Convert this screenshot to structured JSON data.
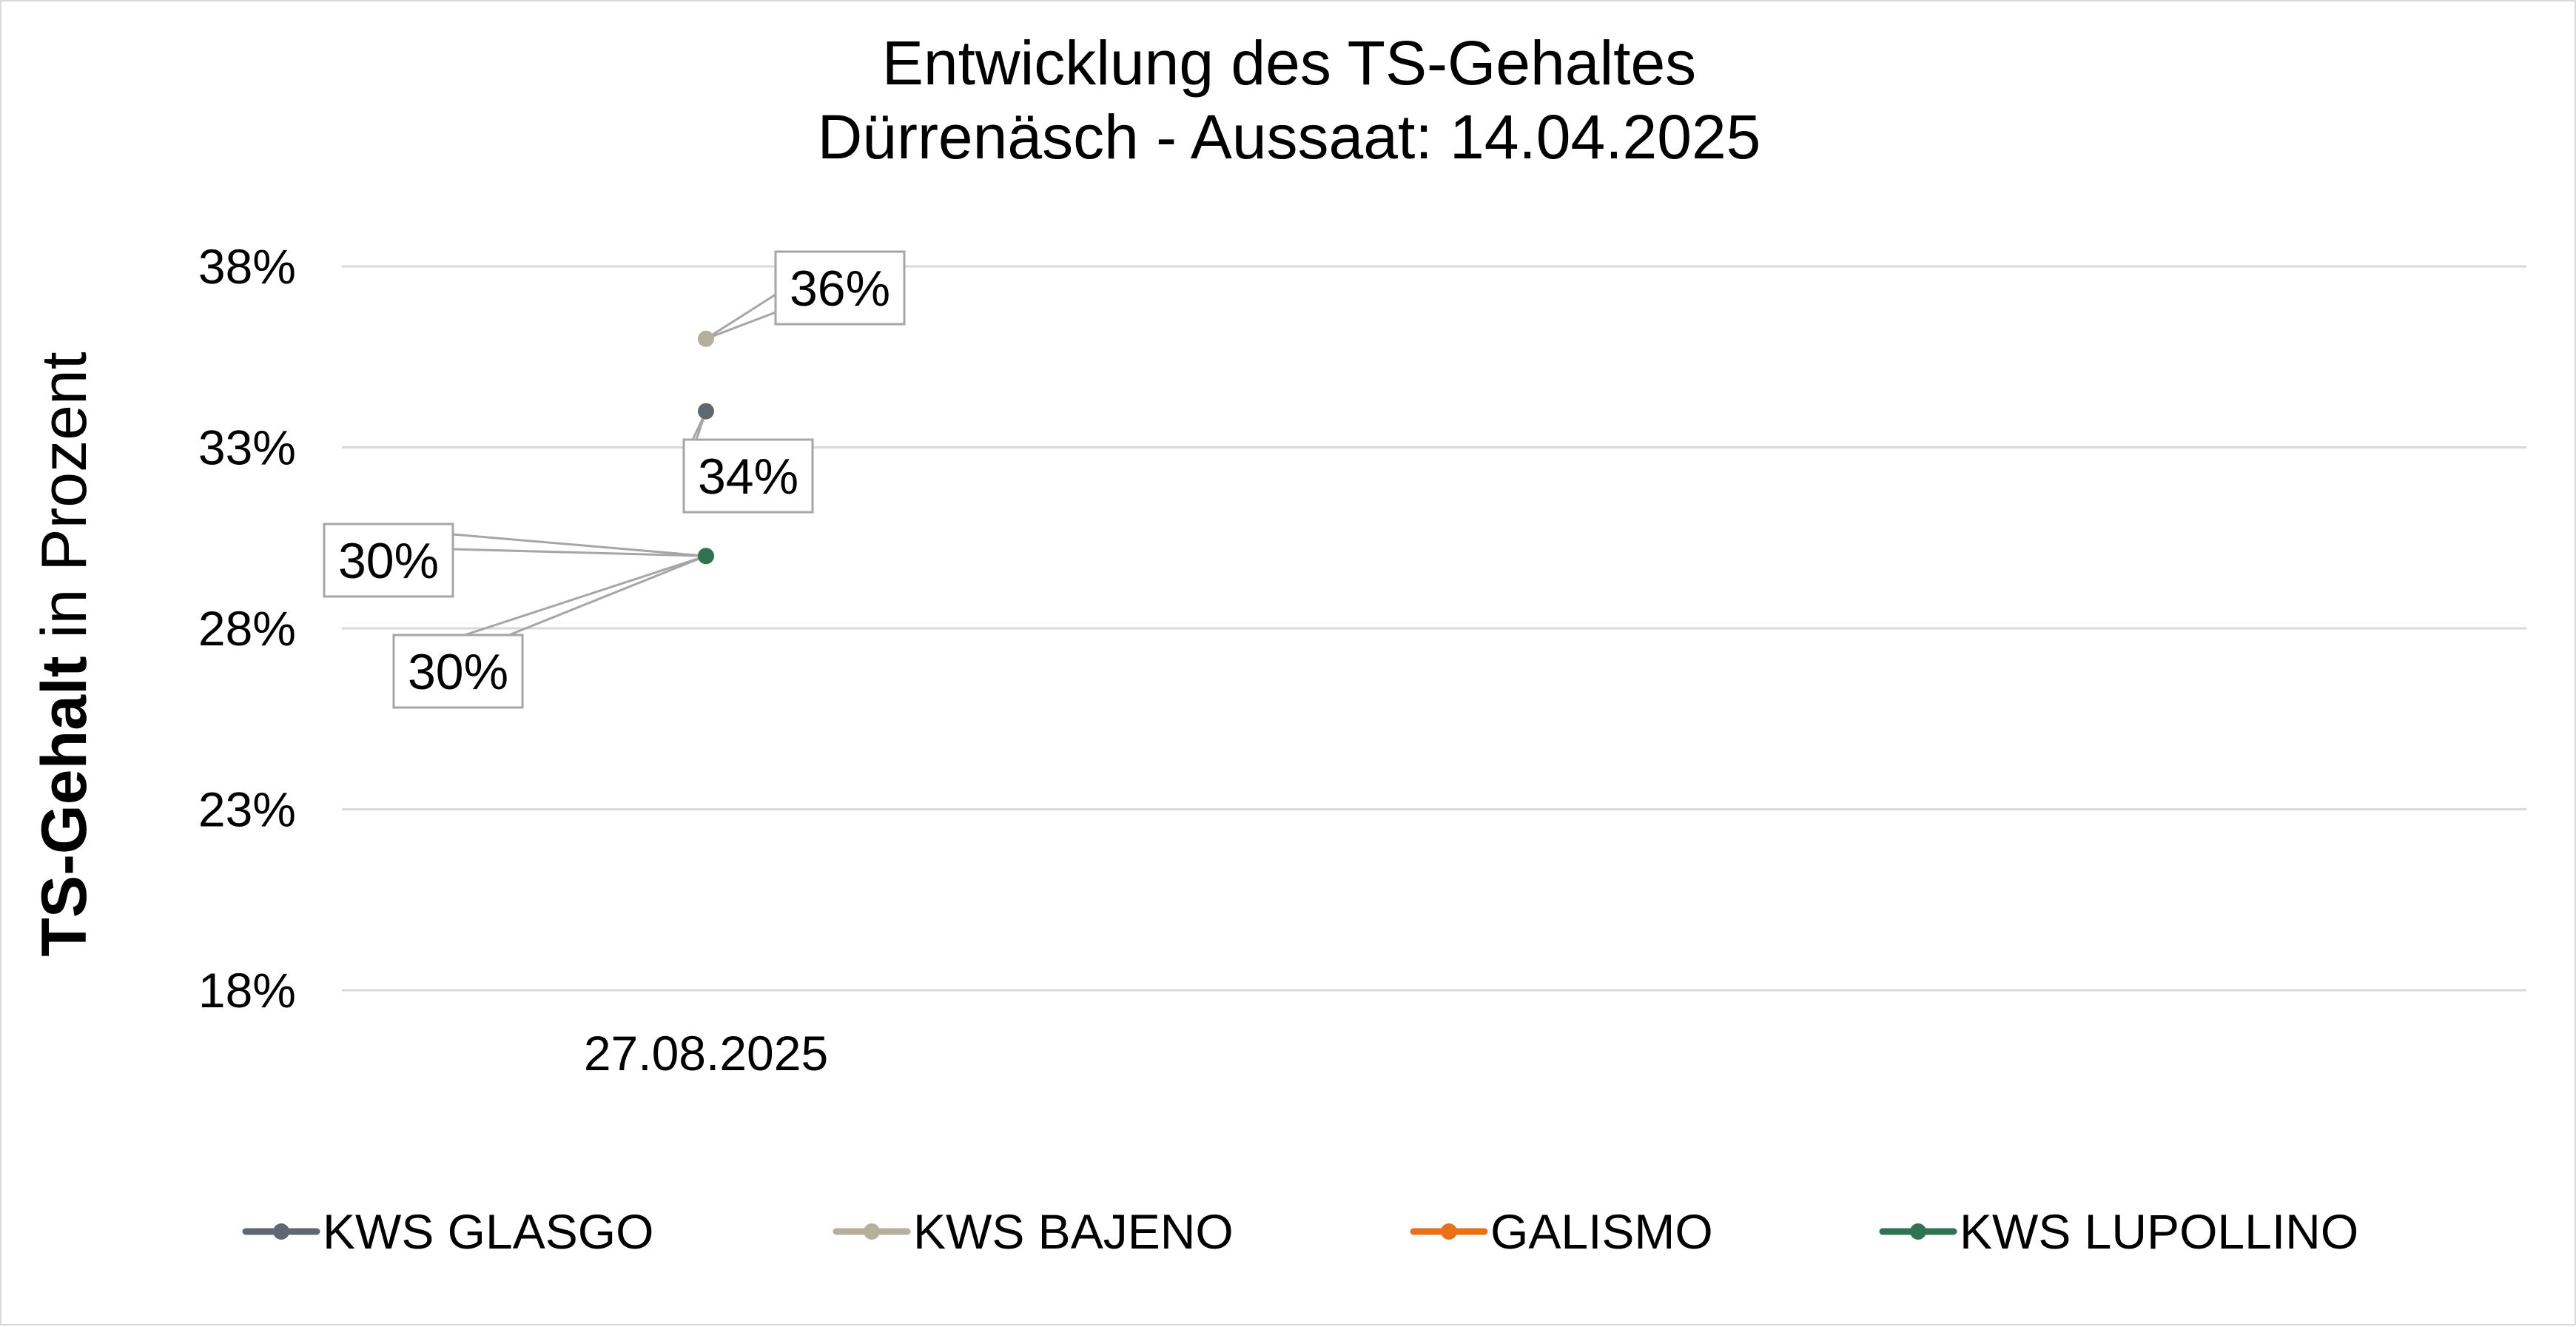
{
  "chart_data": {
    "type": "line",
    "title": "Entwicklung des TS-Gehaltes",
    "subtitle": "Dürrenäsch - Aussaat: 14.04.2025",
    "ylabel_bold": "TS-Gehalt",
    "ylabel_rest": " in Prozent",
    "xlabel": "",
    "categories": [
      "27.08.2025"
    ],
    "ylim": [
      0.18,
      0.38
    ],
    "yticks": [
      {
        "value": 0.38,
        "label": "38%"
      },
      {
        "value": 0.33,
        "label": "33%"
      },
      {
        "value": 0.28,
        "label": "28%"
      },
      {
        "value": 0.23,
        "label": "23%"
      },
      {
        "value": 0.18,
        "label": "18%"
      }
    ],
    "grid": true,
    "legend_position": "bottom",
    "series": [
      {
        "name": "KWS GLASGO",
        "color": "#5f6870",
        "values": [
          0.34
        ],
        "labels": [
          "34%"
        ]
      },
      {
        "name": "KWS BAJENO",
        "color": "#b3b09b",
        "values": [
          0.36
        ],
        "labels": [
          "36%"
        ]
      },
      {
        "name": "GALISMO",
        "color": "#ec7014",
        "values": [
          0.3
        ],
        "labels": [
          "30%"
        ]
      },
      {
        "name": "KWS LUPOLLINO",
        "color": "#2e7453",
        "values": [
          0.3
        ],
        "labels": [
          "30%"
        ]
      }
    ]
  }
}
